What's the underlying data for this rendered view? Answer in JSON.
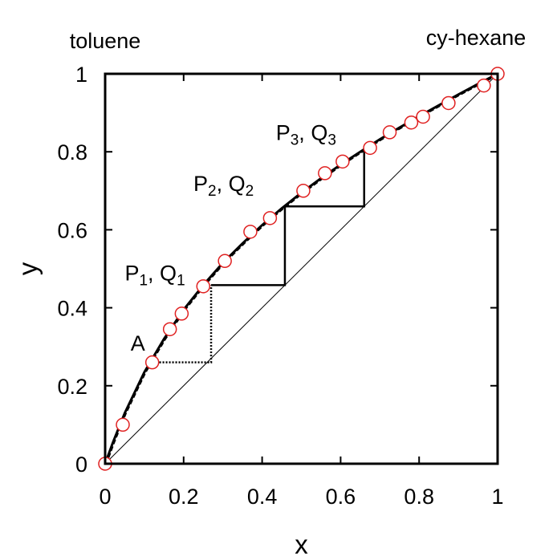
{
  "chart_data": {
    "type": "scatter",
    "xlabel": "x",
    "ylabel": "y",
    "xlim": [
      0,
      1
    ],
    "ylim": [
      0,
      1
    ],
    "xticks": [
      "0",
      "0.2",
      "0.4",
      "0.6",
      "0.8",
      "1"
    ],
    "yticks": [
      "0",
      "0.2",
      "0.4",
      "0.6",
      "0.8",
      "1"
    ],
    "corner_labels": {
      "left": "toluene",
      "right": "cy-hexane"
    },
    "experimental_points": {
      "marker": "open-circle",
      "color": "#e02020",
      "x": [
        0.0,
        0.045,
        0.12,
        0.165,
        0.195,
        0.25,
        0.305,
        0.37,
        0.42,
        0.505,
        0.56,
        0.605,
        0.675,
        0.725,
        0.78,
        0.81,
        0.875,
        0.965,
        1.0
      ],
      "y": [
        0.0,
        0.1,
        0.26,
        0.345,
        0.385,
        0.455,
        0.52,
        0.595,
        0.63,
        0.7,
        0.745,
        0.775,
        0.81,
        0.85,
        0.875,
        0.89,
        0.925,
        0.97,
        1.0
      ]
    },
    "equilibrium_curve": {
      "x": [
        0,
        0.02,
        0.05,
        0.1,
        0.15,
        0.2,
        0.25,
        0.3,
        0.35,
        0.4,
        0.45,
        0.5,
        0.55,
        0.6,
        0.65,
        0.7,
        0.75,
        0.8,
        0.85,
        0.9,
        0.95,
        1.0
      ],
      "y": [
        0,
        0.055,
        0.13,
        0.235,
        0.32,
        0.395,
        0.458,
        0.515,
        0.565,
        0.612,
        0.655,
        0.695,
        0.732,
        0.767,
        0.8,
        0.832,
        0.862,
        0.891,
        0.919,
        0.947,
        0.974,
        1.0
      ]
    },
    "diagonal": {
      "x": [
        0,
        1
      ],
      "y": [
        0,
        1
      ]
    },
    "stages_dotted": {
      "x": [
        0.13,
        0.27,
        0.27
      ],
      "y": [
        0.26,
        0.26,
        0.458
      ]
    },
    "stages_solid": {
      "x": [
        0.27,
        0.458,
        0.458,
        0.66,
        0.66
      ],
      "y": [
        0.458,
        0.458,
        0.66,
        0.66,
        0.81
      ]
    },
    "annotations": [
      {
        "text": "A",
        "sub": "",
        "sep": "",
        "text2": "",
        "sub2": "",
        "x": 0.065,
        "y": 0.29
      },
      {
        "text": "P",
        "sub": "1",
        "sep": ", ",
        "text2": "Q",
        "sub2": "1",
        "x": 0.05,
        "y": 0.47
      },
      {
        "text": "P",
        "sub": "2",
        "sep": ", ",
        "text2": "Q",
        "sub2": "2",
        "x": 0.225,
        "y": 0.7
      },
      {
        "text": "P",
        "sub": "3",
        "sep": ", ",
        "text2": "Q",
        "sub2": "3",
        "x": 0.435,
        "y": 0.83
      }
    ]
  }
}
